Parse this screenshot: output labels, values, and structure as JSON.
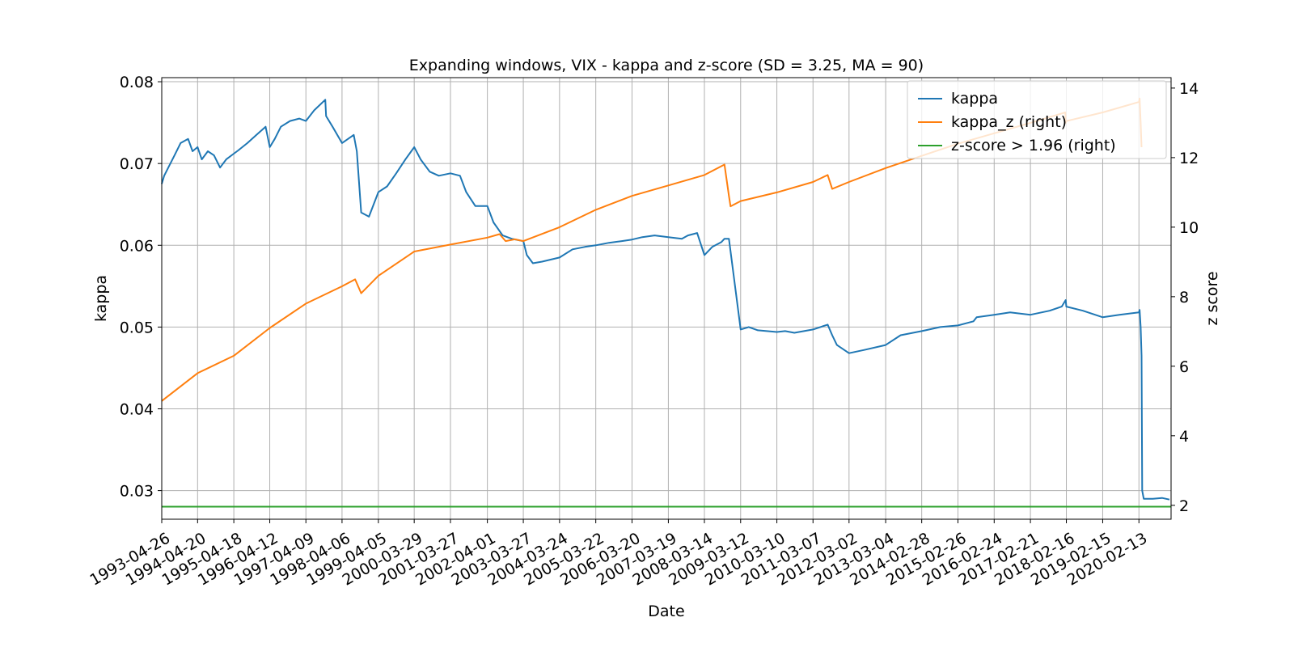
{
  "chart_data": {
    "type": "line",
    "title": "Expanding windows, VIX - kappa and z-score (SD = 3.25, MA = 90)",
    "xlabel": "Date",
    "ylabel": "kappa",
    "ylabel_right": "z score",
    "xlim": [
      "1993-04-26",
      "2020-12-31"
    ],
    "ylim": [
      0.0265,
      0.0805
    ],
    "ylim_right": [
      1.6,
      14.3
    ],
    "grid": true,
    "legend_position": "top-right",
    "x_ticks": [
      "1993-04-26",
      "1994-04-20",
      "1995-04-18",
      "1996-04-12",
      "1997-04-09",
      "1998-04-06",
      "1999-04-05",
      "2000-03-29",
      "2001-03-27",
      "2002-04-01",
      "2003-03-27",
      "2004-03-24",
      "2005-03-22",
      "2006-03-20",
      "2007-03-19",
      "2008-03-14",
      "2009-03-12",
      "2010-03-10",
      "2011-03-07",
      "2012-03-02",
      "2013-03-04",
      "2014-02-28",
      "2015-02-26",
      "2016-02-24",
      "2017-02-21",
      "2018-02-16",
      "2019-02-15",
      "2020-02-13"
    ],
    "y_ticks_left": [
      "0.03",
      "0.04",
      "0.05",
      "0.06",
      "0.07",
      "0.08"
    ],
    "y_ticks_right": [
      "2",
      "4",
      "6",
      "8",
      "10",
      "12",
      "14"
    ],
    "series": [
      {
        "name": "kappa",
        "axis": "left",
        "color": "#1f77b4",
        "x": [
          "1993-04-26",
          "1993-05-20",
          "1993-07-01",
          "1993-09-01",
          "1993-11-01",
          "1994-01-15",
          "1994-03-01",
          "1994-04-20",
          "1994-06-01",
          "1994-08-01",
          "1994-10-01",
          "1994-12-01",
          "1995-02-01",
          "1995-04-18",
          "1995-06-01",
          "1995-09-01",
          "1995-12-01",
          "1996-03-01",
          "1996-04-12",
          "1996-06-01",
          "1996-08-01",
          "1996-11-01",
          "1997-02-01",
          "1997-04-09",
          "1997-07-01",
          "1997-10-20",
          "1997-10-28",
          "1998-01-01",
          "1998-04-06",
          "1998-08-01",
          "1998-09-01",
          "1998-10-15",
          "1999-01-01",
          "1999-04-05",
          "1999-07-01",
          "1999-10-01",
          "2000-01-01",
          "2000-03-29",
          "2000-06-01",
          "2000-09-01",
          "2000-12-01",
          "2001-03-27",
          "2001-07-01",
          "2001-09-01",
          "2001-12-01",
          "2002-04-01",
          "2002-06-01",
          "2002-09-01",
          "2002-12-01",
          "2003-03-27",
          "2003-05-01",
          "2003-07-01",
          "2003-10-01",
          "2004-03-24",
          "2004-08-01",
          "2004-12-01",
          "2005-03-22",
          "2005-08-01",
          "2005-12-01",
          "2006-03-20",
          "2006-07-01",
          "2006-11-01",
          "2007-03-19",
          "2007-08-01",
          "2007-10-01",
          "2008-01-01",
          "2008-03-14",
          "2008-06-01",
          "2008-09-01",
          "2008-10-01",
          "2008-11-15",
          "2009-03-12",
          "2009-06-01",
          "2009-09-01",
          "2010-03-10",
          "2010-06-01",
          "2010-09-01",
          "2011-03-07",
          "2011-08-01",
          "2011-09-15",
          "2011-11-01",
          "2012-03-02",
          "2012-08-01",
          "2013-03-04",
          "2013-08-01",
          "2014-02-28",
          "2014-09-01",
          "2015-02-26",
          "2015-08-01",
          "2015-09-01",
          "2016-02-24",
          "2016-08-01",
          "2017-02-21",
          "2017-09-01",
          "2018-01-01",
          "2018-02-09",
          "2018-02-16",
          "2018-08-01",
          "2019-02-15",
          "2019-08-01",
          "2020-02-13",
          "2020-02-20",
          "2020-03-01",
          "2020-03-10",
          "2020-03-17",
          "2020-04-01",
          "2020-07-01",
          "2020-10-01",
          "2020-12-15"
        ],
        "y": [
          0.0675,
          0.0685,
          0.0695,
          0.071,
          0.0725,
          0.073,
          0.0715,
          0.072,
          0.0705,
          0.0715,
          0.071,
          0.0695,
          0.0705,
          0.0712,
          0.0716,
          0.0725,
          0.0735,
          0.0745,
          0.072,
          0.073,
          0.0745,
          0.0752,
          0.0755,
          0.0752,
          0.0765,
          0.0778,
          0.0758,
          0.0745,
          0.0725,
          0.0735,
          0.0715,
          0.064,
          0.0635,
          0.0665,
          0.0672,
          0.0688,
          0.0705,
          0.072,
          0.0705,
          0.069,
          0.0685,
          0.0688,
          0.0685,
          0.0665,
          0.0648,
          0.0648,
          0.0628,
          0.0612,
          0.0608,
          0.0605,
          0.0588,
          0.0578,
          0.058,
          0.0585,
          0.0595,
          0.0598,
          0.06,
          0.0603,
          0.0605,
          0.0607,
          0.061,
          0.0612,
          0.061,
          0.0608,
          0.0612,
          0.0615,
          0.0588,
          0.0598,
          0.0604,
          0.0608,
          0.0608,
          0.0497,
          0.05,
          0.0496,
          0.0494,
          0.0495,
          0.0493,
          0.0497,
          0.0503,
          0.049,
          0.0478,
          0.0468,
          0.0472,
          0.0478,
          0.049,
          0.0495,
          0.05,
          0.0502,
          0.0507,
          0.0512,
          0.0515,
          0.0518,
          0.0515,
          0.052,
          0.0525,
          0.0533,
          0.0525,
          0.052,
          0.0512,
          0.0515,
          0.0518,
          0.0521,
          0.05,
          0.0465,
          0.03,
          0.029,
          0.029,
          0.0291,
          0.0289
        ]
      },
      {
        "name": "kappa_z (right)",
        "axis": "right",
        "color": "#ff7f0e",
        "x": [
          "1993-04-26",
          "1994-04-20",
          "1995-04-18",
          "1996-04-12",
          "1997-04-09",
          "1998-04-06",
          "1998-08-15",
          "1998-10-15",
          "1999-04-05",
          "2000-03-29",
          "2001-03-27",
          "2002-04-01",
          "2002-08-01",
          "2002-10-01",
          "2003-01-01",
          "2003-03-27",
          "2004-03-24",
          "2005-03-22",
          "2006-03-20",
          "2007-03-19",
          "2008-03-14",
          "2008-10-01",
          "2008-11-15",
          "2008-12-01",
          "2009-03-12",
          "2010-03-10",
          "2011-03-07",
          "2011-08-01",
          "2011-09-15",
          "2012-03-02",
          "2013-03-04",
          "2014-02-28",
          "2015-02-26",
          "2016-02-24",
          "2017-02-21",
          "2018-02-05",
          "2018-02-09",
          "2018-02-16",
          "2019-02-15",
          "2020-02-13",
          "2020-02-20",
          "2020-03-01",
          "2020-03-10"
        ],
        "y": [
          5.0,
          5.8,
          6.3,
          7.1,
          7.8,
          8.3,
          8.5,
          8.1,
          8.6,
          9.3,
          9.5,
          9.7,
          9.8,
          9.6,
          9.65,
          9.6,
          10.0,
          10.5,
          10.9,
          11.2,
          11.5,
          11.8,
          10.9,
          10.6,
          10.75,
          11.0,
          11.3,
          11.5,
          11.1,
          11.3,
          11.7,
          12.05,
          12.4,
          12.7,
          13.0,
          13.3,
          13.0,
          13.05,
          13.3,
          13.6,
          13.7,
          13.0,
          12.3
        ]
      },
      {
        "name": "z-score > 1.96 (right)",
        "axis": "right",
        "color": "#2ca02c",
        "x": [
          "1993-04-26",
          "2020-12-31"
        ],
        "y": [
          1.96,
          1.96
        ]
      }
    ]
  }
}
